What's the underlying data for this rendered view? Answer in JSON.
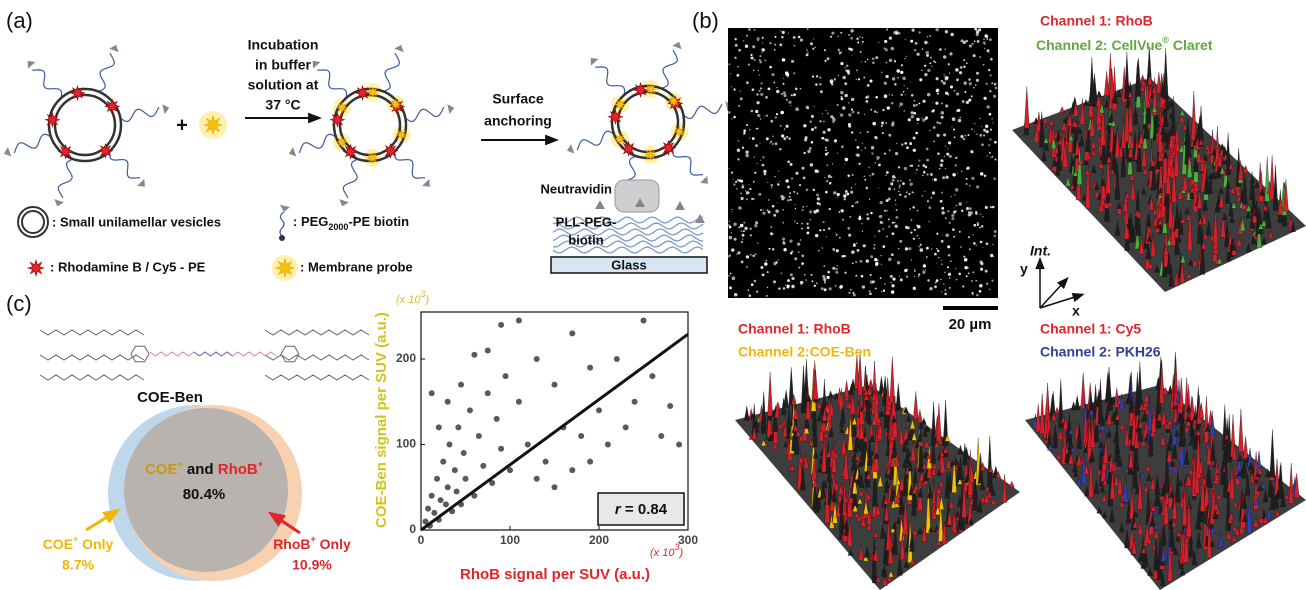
{
  "panel_a": {
    "label": "(a)",
    "plus": "+",
    "incubation": [
      "Incubation",
      "in buffer",
      "solution at",
      "37 °C"
    ],
    "anchoring": [
      "Surface",
      "anchoring"
    ],
    "legend": {
      "suv": ": Small unilamellar vesicles",
      "peg": [
        ": PEG",
        "2000",
        "-PE biotin"
      ],
      "dye": ": Rhodamine B / Cy5 - PE",
      "probe": ": Membrane probe"
    },
    "neutravidin": "Neutravidin",
    "pll": [
      "PLL-PEG-",
      "biotin"
    ],
    "glass": "Glass"
  },
  "panel_b": {
    "label": "(b)",
    "scale_bar": "20 µm",
    "top_right": {
      "channel1": "Channel 1: RhoB",
      "channel2": [
        "Channel 2: CellVue",
        "®",
        " Claret"
      ]
    },
    "bottom_left": {
      "channel1": "Channel 1: RhoB",
      "channel2": "Channel 2:COE-Ben"
    },
    "bottom_right": {
      "channel1": "Channel 1: Cy5",
      "channel2": "Channel 2: PKH26"
    },
    "axes": {
      "z": "Int.",
      "y": "y",
      "x": "x"
    }
  },
  "panel_c": {
    "label": "(c)",
    "molecule": "COE-Ben",
    "venn": {
      "overlap": [
        "COE",
        "+",
        " and ",
        "RhoB",
        "+"
      ],
      "overlap_value": "80.4%",
      "left": [
        "COE",
        "+",
        " Only"
      ],
      "left_value": "8.7%",
      "right": [
        "RhoB",
        "+",
        " Only"
      ],
      "right_value": "10.9%"
    }
  },
  "chart_data": {
    "type": "scatter",
    "xlabel": "RhoB signal per SUV (a.u.)",
    "ylabel": "COE-Ben signal per SUV (a.u.)",
    "x_multiplier": [
      "(x 10",
      "3",
      ")"
    ],
    "y_multiplier": [
      "(x 10",
      "3",
      ")"
    ],
    "x": [
      5,
      8,
      10,
      12,
      15,
      18,
      20,
      22,
      25,
      28,
      30,
      32,
      35,
      38,
      40,
      42,
      45,
      48,
      50,
      55,
      60,
      65,
      70,
      75,
      80,
      85,
      90,
      95,
      100,
      110,
      120,
      130,
      140,
      150,
      160,
      170,
      180,
      190,
      200,
      210,
      220,
      240,
      260,
      280,
      12,
      20,
      30,
      45,
      60,
      75,
      90,
      110,
      130,
      150,
      170,
      190,
      230,
      270,
      290,
      250
    ],
    "y": [
      10,
      25,
      5,
      40,
      20,
      60,
      12,
      35,
      80,
      30,
      50,
      100,
      22,
      70,
      45,
      120,
      30,
      90,
      60,
      140,
      40,
      110,
      75,
      160,
      55,
      130,
      95,
      180,
      70,
      150,
      100,
      200,
      80,
      170,
      120,
      230,
      110,
      190,
      140,
      100,
      200,
      150,
      180,
      145,
      160,
      120,
      150,
      170,
      205,
      210,
      240,
      245,
      60,
      50,
      70,
      80,
      120,
      110,
      100,
      245
    ],
    "xlim": [
      0,
      300
    ],
    "ylim": [
      0,
      255
    ],
    "xticks": [
      0,
      100,
      200,
      300
    ],
    "yticks": [
      0,
      100,
      200
    ],
    "color": "#595959",
    "fit": {
      "x": [
        0,
        300
      ],
      "y": [
        0,
        229
      ]
    },
    "annotation": [
      "r",
      " = 0.84"
    ]
  }
}
